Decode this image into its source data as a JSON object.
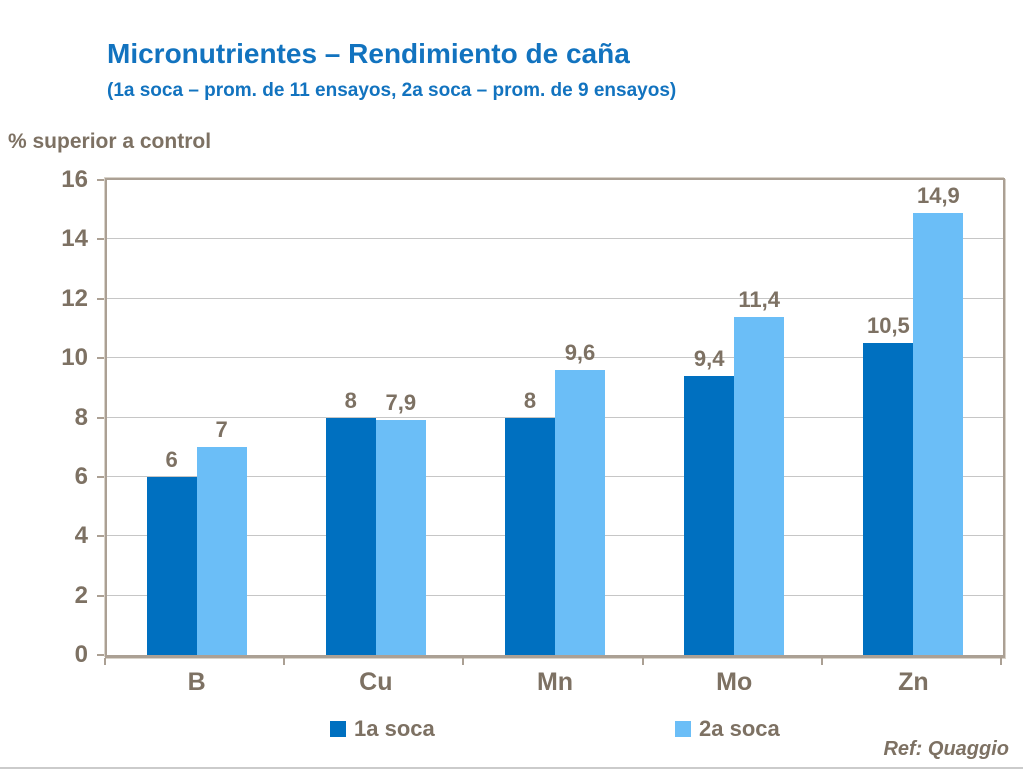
{
  "title": "Micronutrientes – Rendimiento de caña",
  "subtitle": "(1a soca – prom. de 11 ensayos, 2a soca – prom. de 9 ensayos)",
  "axis_title": "% superior a control",
  "footer": "Ref: Quaggio",
  "colors": {
    "title_blue": "#1273BF",
    "text_taupe": "#7D7163",
    "series1_dark_blue": "#0070C0",
    "series2_light_blue": "#6BBEF7",
    "axis_border": "#ABA094",
    "gridline": "#C6C6C6"
  },
  "legend": [
    {
      "label": "1a soca",
      "color": "#0070C0"
    },
    {
      "label": "2a soca",
      "color": "#6BBEF7"
    }
  ],
  "chart_data": {
    "type": "bar",
    "categories": [
      "B",
      "Cu",
      "Mn",
      "Mo",
      "Zn"
    ],
    "series": [
      {
        "name": "1a soca",
        "color": "#0070C0",
        "values": [
          6,
          8,
          8,
          9.4,
          10.5
        ],
        "labels": [
          "6",
          "8",
          "8",
          "9,4",
          "10,5"
        ]
      },
      {
        "name": "2a soca",
        "color": "#6BBEF7",
        "values": [
          7,
          7.9,
          9.6,
          11.4,
          14.9
        ],
        "labels": [
          "7",
          "7,9",
          "9,6",
          "11,4",
          "14,9"
        ]
      }
    ],
    "title": "Micronutrientes – Rendimiento de caña",
    "xlabel": "",
    "ylabel": "% superior a control",
    "ylim": [
      0,
      16
    ],
    "yticks": [
      0,
      2,
      4,
      6,
      8,
      10,
      12,
      14,
      16
    ],
    "grid": true,
    "legend_position": "bottom"
  }
}
